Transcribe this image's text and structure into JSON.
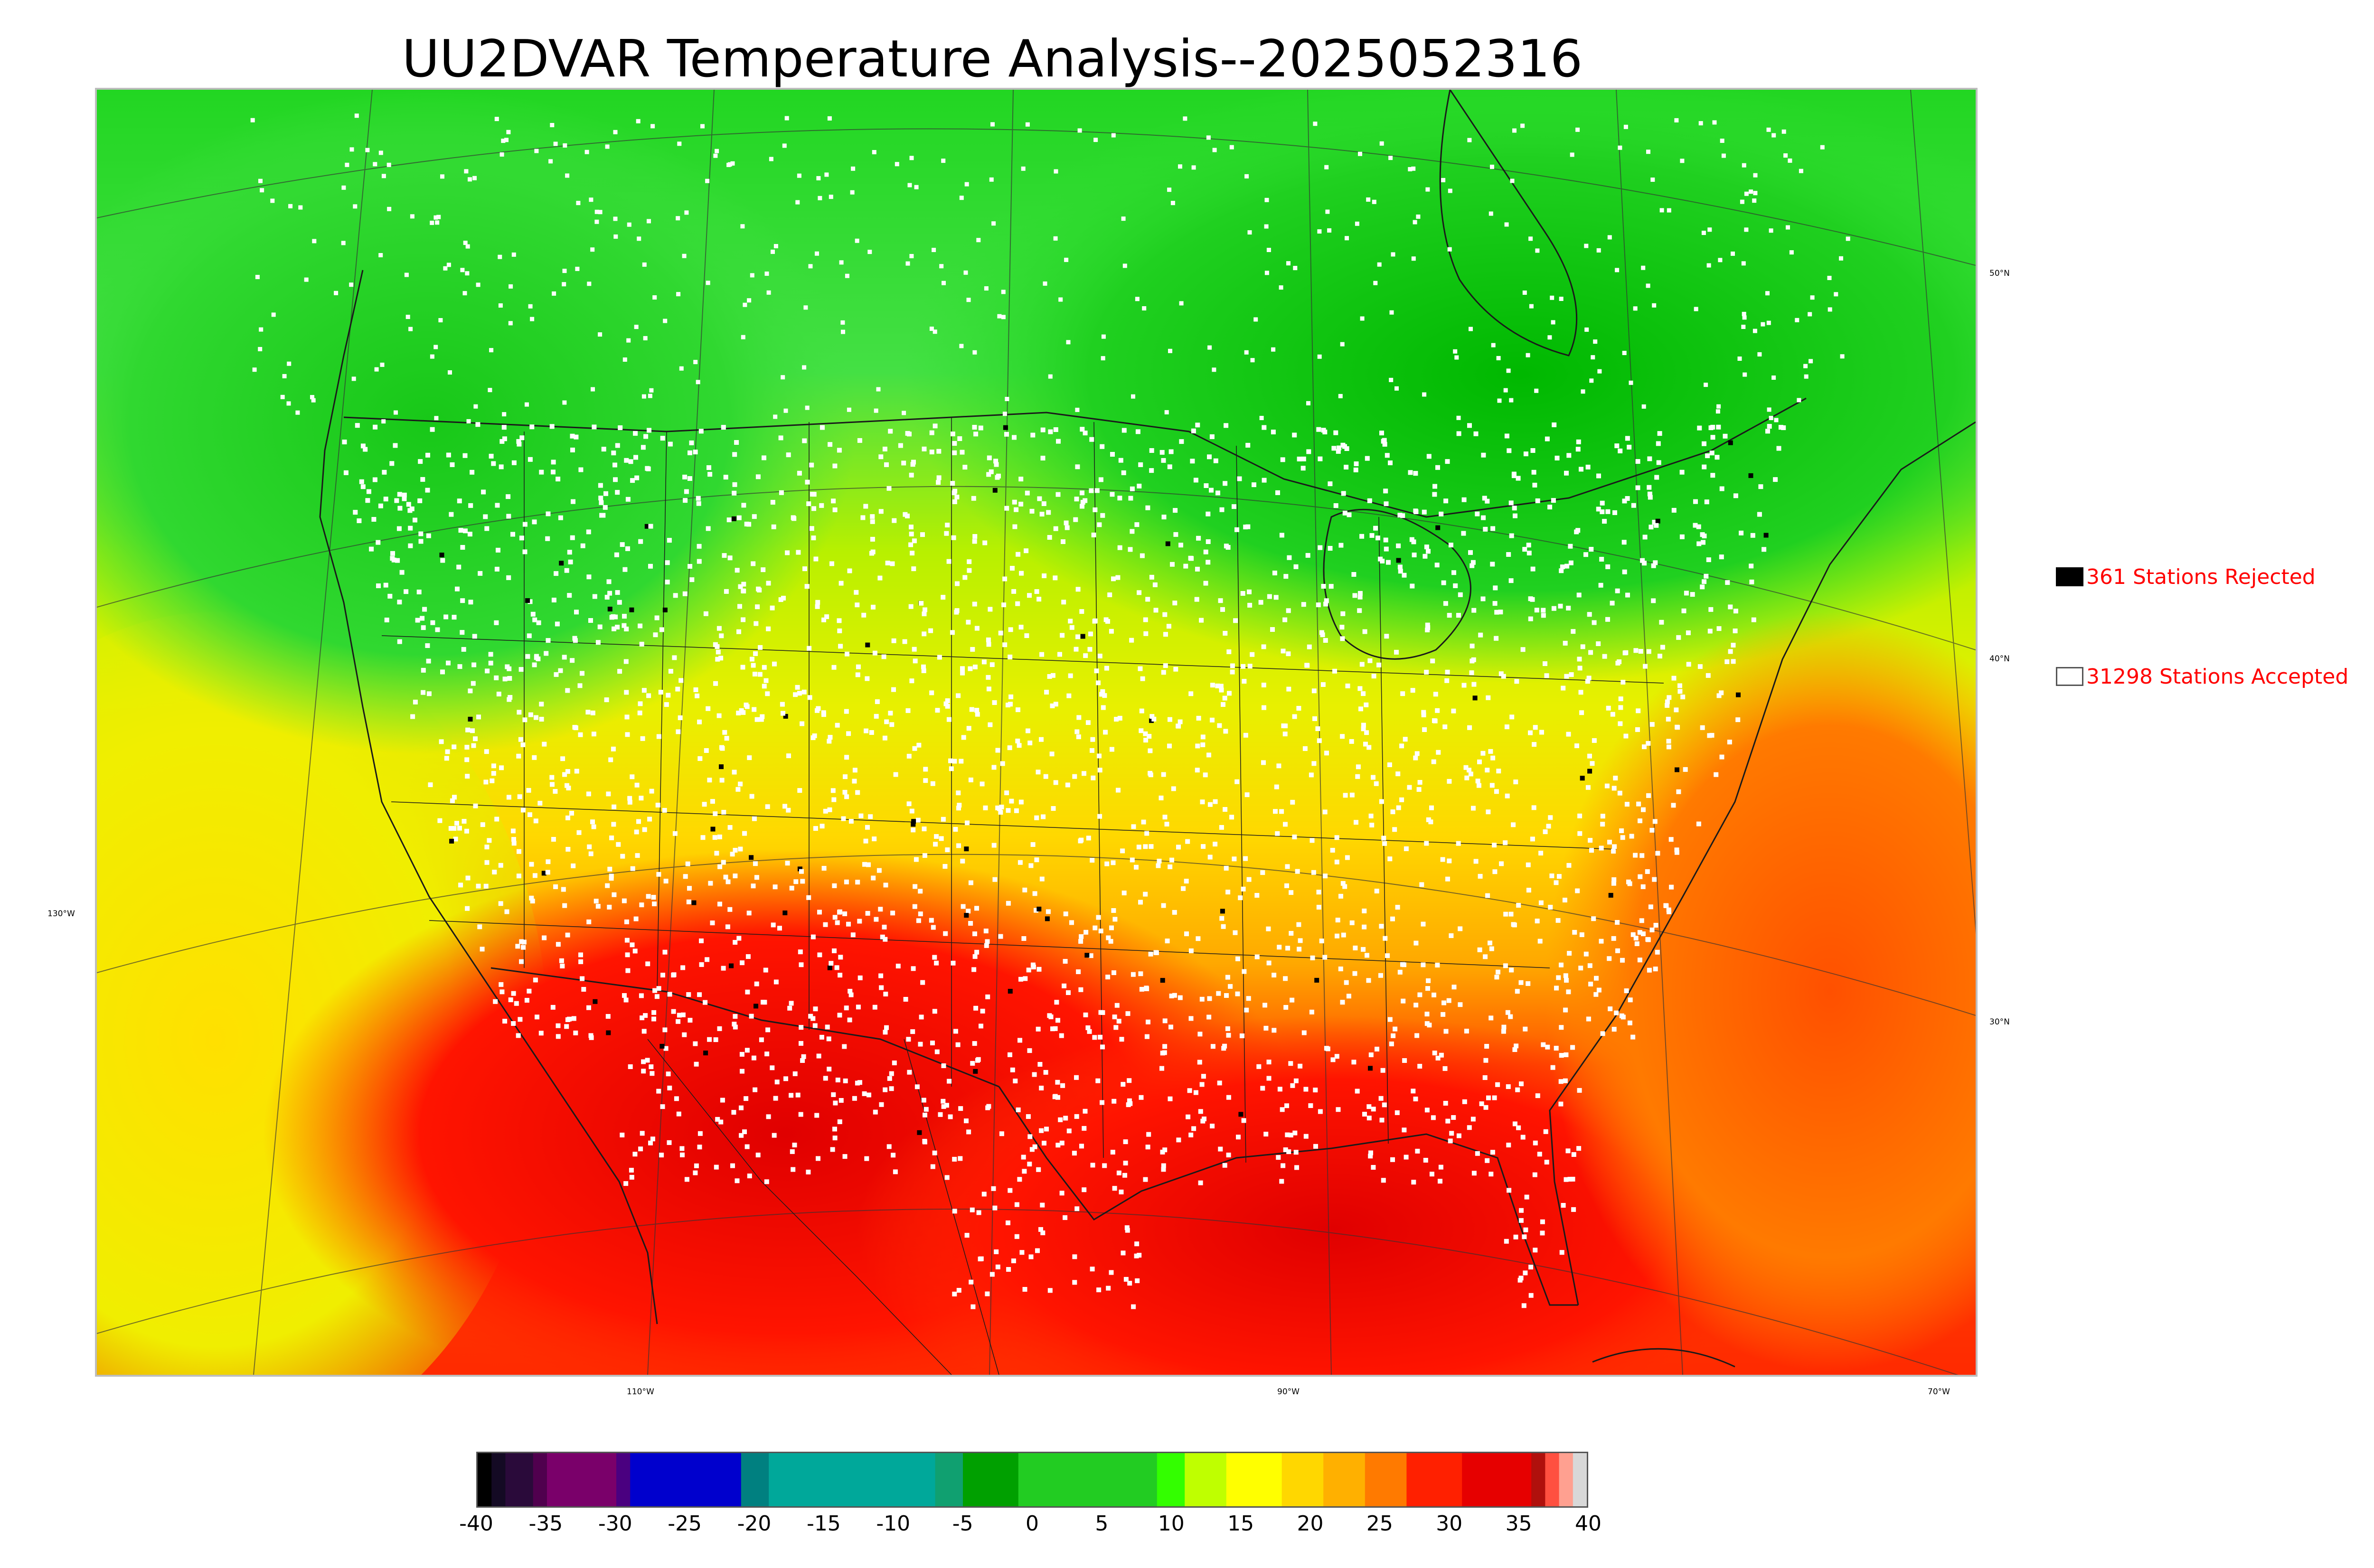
{
  "title": "UU2DVAR Temperature Analysis--2025052316",
  "map": {
    "longitude_labels": [
      {
        "label": "110°W",
        "lon": -110
      },
      {
        "label": "90°W",
        "lon": -90
      },
      {
        "label": "70°W",
        "lon": -70
      },
      {
        "label": "130°W",
        "lon": -130
      }
    ],
    "latitude_labels": [
      {
        "label": "50°N",
        "lat": 50
      },
      {
        "label": "40°N",
        "lat": 40
      },
      {
        "label": "30°N",
        "lat": 30
      }
    ],
    "field": "temperature",
    "units": "°C",
    "color_scale_ref": "colorbar"
  },
  "legend": {
    "rejected": {
      "count": "361",
      "label": "361 Stations Rejected",
      "color": "#000000"
    },
    "accepted": {
      "count": "31298",
      "label": "31298 Stations Accepted",
      "color": "#ffffff"
    }
  },
  "colorbar": {
    "min": -40,
    "max": 40,
    "ticks": [
      "-40",
      "-35",
      "-30",
      "-25",
      "-20",
      "-15",
      "-10",
      "-5",
      "0",
      "5",
      "10",
      "15",
      "20",
      "25",
      "30",
      "35",
      "40"
    ],
    "segments": [
      {
        "from": -40,
        "to": -39,
        "color": "#000000"
      },
      {
        "from": -39,
        "to": -38,
        "color": "#140a24"
      },
      {
        "from": -38,
        "to": -36,
        "color": "#2a0a3a"
      },
      {
        "from": -36,
        "to": -35,
        "color": "#50004e"
      },
      {
        "from": -35,
        "to": -30,
        "color": "#7a006a"
      },
      {
        "from": -30,
        "to": -29,
        "color": "#4a0080"
      },
      {
        "from": -29,
        "to": -21,
        "color": "#0000cd"
      },
      {
        "from": -21,
        "to": -19,
        "color": "#008080"
      },
      {
        "from": -19,
        "to": -7,
        "color": "#00a89a"
      },
      {
        "from": -7,
        "to": -5,
        "color": "#10a070"
      },
      {
        "from": -5,
        "to": -1,
        "color": "#00a000"
      },
      {
        "from": -1,
        "to": 9,
        "color": "#22cc22"
      },
      {
        "from": 9,
        "to": 11,
        "color": "#33ff00"
      },
      {
        "from": 11,
        "to": 14,
        "color": "#bfff00"
      },
      {
        "from": 14,
        "to": 18,
        "color": "#ffff00"
      },
      {
        "from": 18,
        "to": 21,
        "color": "#ffd700"
      },
      {
        "from": 21,
        "to": 24,
        "color": "#ffb000"
      },
      {
        "from": 24,
        "to": 27,
        "color": "#ff7a00"
      },
      {
        "from": 27,
        "to": 31,
        "color": "#ff2000"
      },
      {
        "from": 31,
        "to": 36,
        "color": "#e60000"
      },
      {
        "from": 36,
        "to": 37,
        "color": "#b0100c"
      },
      {
        "from": 37,
        "to": 38,
        "color": "#ff5040"
      },
      {
        "from": 38,
        "to": 39,
        "color": "#ffa090"
      },
      {
        "from": 39,
        "to": 40,
        "color": "#d8d8d8"
      }
    ]
  }
}
